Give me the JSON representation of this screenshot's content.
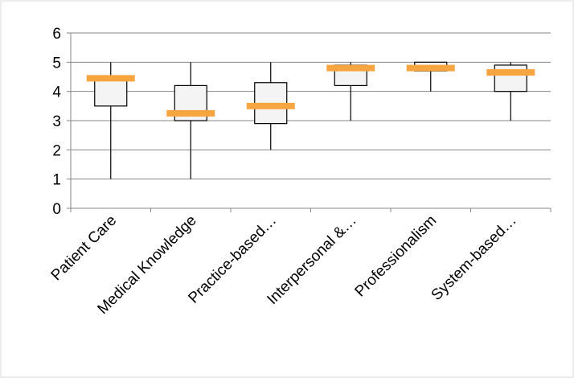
{
  "chart_data": {
    "type": "box",
    "categories": [
      "Patient Care",
      "Medical Knowledge",
      "Practice-based…",
      "Interpersonal &…",
      "Professionalism",
      "System-based…"
    ],
    "min": [
      1,
      1,
      2,
      3,
      4,
      3
    ],
    "q1": [
      3.5,
      3.0,
      2.9,
      4.2,
      4.7,
      4.0
    ],
    "q3": [
      4.5,
      4.2,
      4.3,
      4.9,
      5,
      4.9
    ],
    "max": [
      5,
      5,
      5,
      5,
      5,
      5
    ],
    "mean": [
      4.45,
      3.25,
      3.5,
      4.8,
      4.8,
      4.65
    ],
    "box_color": "#f4f4f4",
    "mean_color": "#f7a541",
    "ylim": [
      0,
      6
    ],
    "yticks": [
      0,
      1,
      2,
      3,
      4,
      5,
      6
    ],
    "grid": true
  }
}
